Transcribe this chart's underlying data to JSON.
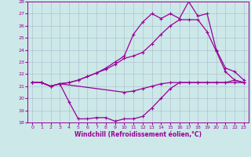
{
  "title": "",
  "xlabel": "Windchill (Refroidissement éolien,°C)",
  "ylabel": "",
  "xlim": [
    -0.5,
    23.5
  ],
  "ylim": [
    18,
    28
  ],
  "xticks": [
    0,
    1,
    2,
    3,
    4,
    5,
    6,
    7,
    8,
    9,
    10,
    11,
    12,
    13,
    14,
    15,
    16,
    17,
    18,
    19,
    20,
    21,
    22,
    23
  ],
  "yticks": [
    18,
    19,
    20,
    21,
    22,
    23,
    24,
    25,
    26,
    27,
    28
  ],
  "background_color": "#cce8e8",
  "grid_color": "#aabbcc",
  "line_color": "#990099",
  "lines": [
    {
      "x": [
        0,
        1,
        2,
        3,
        10,
        11,
        12,
        13,
        14,
        15,
        16,
        17,
        18,
        19,
        20,
        21,
        22,
        23
      ],
      "y": [
        21.3,
        21.3,
        21.0,
        21.2,
        20.5,
        20.6,
        20.8,
        21.0,
        21.2,
        21.3,
        21.3,
        21.3,
        21.3,
        21.3,
        21.3,
        21.3,
        21.3,
        21.3
      ],
      "marker": "+"
    },
    {
      "x": [
        0,
        1,
        2,
        3,
        4,
        5,
        6,
        7,
        8,
        9,
        10,
        11,
        12,
        13,
        14,
        15,
        16,
        17,
        18,
        19,
        20,
        21,
        22,
        23
      ],
      "y": [
        21.3,
        21.3,
        21.0,
        21.2,
        19.7,
        18.3,
        18.3,
        18.4,
        18.4,
        18.1,
        18.3,
        18.3,
        18.5,
        19.2,
        20.0,
        20.8,
        21.3,
        21.3,
        21.3,
        21.3,
        21.3,
        21.3,
        21.5,
        21.3
      ],
      "marker": "+"
    },
    {
      "x": [
        0,
        1,
        2,
        3,
        4,
        5,
        6,
        7,
        8,
        9,
        10,
        11,
        12,
        13,
        14,
        15,
        16,
        17,
        18,
        19,
        20,
        21,
        22,
        23
      ],
      "y": [
        21.3,
        21.3,
        21.0,
        21.2,
        21.3,
        21.5,
        21.8,
        22.1,
        22.4,
        22.8,
        23.3,
        23.5,
        23.8,
        24.5,
        25.3,
        26.0,
        26.5,
        26.5,
        26.5,
        25.5,
        23.9,
        22.2,
        21.5,
        21.3
      ],
      "marker": "+"
    },
    {
      "x": [
        0,
        1,
        2,
        3,
        4,
        5,
        6,
        7,
        8,
        9,
        10,
        11,
        12,
        13,
        14,
        15,
        16,
        17,
        18,
        19,
        20,
        21,
        22,
        23
      ],
      "y": [
        21.3,
        21.3,
        21.0,
        21.2,
        21.3,
        21.5,
        21.8,
        22.1,
        22.5,
        23.0,
        23.5,
        25.3,
        26.3,
        27.0,
        26.6,
        27.0,
        26.6,
        28.0,
        26.8,
        27.0,
        24.0,
        22.5,
        22.2,
        21.5
      ],
      "marker": "+"
    }
  ]
}
